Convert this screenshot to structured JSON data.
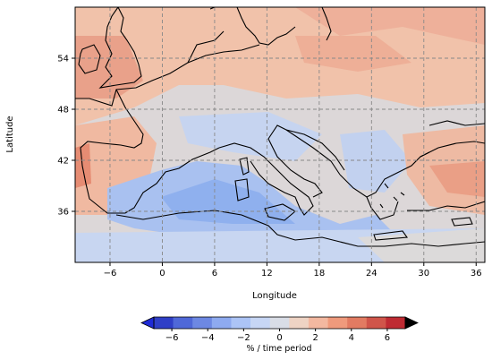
{
  "map": {
    "xlabel": "Longitude",
    "ylabel": "Latitude",
    "lon_range": [
      -10,
      37
    ],
    "lat_range": [
      30,
      60
    ],
    "lon_ticks": [
      {
        "value": -6,
        "label": "−6"
      },
      {
        "value": 0,
        "label": "0"
      },
      {
        "value": 6,
        "label": "6"
      },
      {
        "value": 12,
        "label": "12"
      },
      {
        "value": 18,
        "label": "18"
      },
      {
        "value": 24,
        "label": "24"
      },
      {
        "value": 30,
        "label": "30"
      },
      {
        "value": 36,
        "label": "36"
      }
    ],
    "lat_ticks": [
      {
        "value": 36,
        "label": "36"
      },
      {
        "value": 42,
        "label": "42"
      },
      {
        "value": 48,
        "label": "48"
      },
      {
        "value": 54,
        "label": "54"
      }
    ],
    "gridlines": "dashed",
    "sea_change_color": "#c3d3ee",
    "land_change_color": "#f2c1a7"
  },
  "colorbar": {
    "label": "% / time period",
    "ticks": [
      {
        "value": -6,
        "label": "−6"
      },
      {
        "value": -4,
        "label": "−4"
      },
      {
        "value": -2,
        "label": "−2"
      },
      {
        "value": 0,
        "label": "0"
      },
      {
        "value": 2,
        "label": "2"
      },
      {
        "value": 4,
        "label": "4"
      },
      {
        "value": 6,
        "label": "6"
      }
    ],
    "range": [
      -7,
      7
    ],
    "colors": [
      "#2f3fc7",
      "#4f68d8",
      "#6d88e3",
      "#8eaaf0",
      "#acc4f6",
      "#c7d6f5",
      "#d9dde6",
      "#eed3c4",
      "#f3b8a0",
      "#ef9a7c",
      "#e27b62",
      "#d0554a",
      "#bf2b33"
    ],
    "under_color": "#1f2bd6",
    "over_color": "#000000"
  }
}
